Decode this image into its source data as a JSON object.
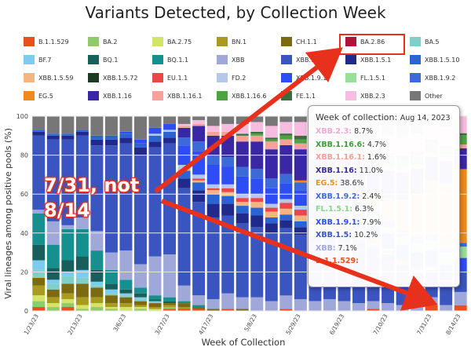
{
  "title": "Variants Detected, by Collection Week",
  "legend": [
    {
      "name": "B.1.1.529",
      "color": "#e8501e"
    },
    {
      "name": "BA.2",
      "color": "#8fcb6b"
    },
    {
      "name": "BA.2.75",
      "color": "#d4e466"
    },
    {
      "name": "BN.1",
      "color": "#a89b1f"
    },
    {
      "name": "CH.1.1",
      "color": "#7b6a12"
    },
    {
      "name": "BA.2.86",
      "color": "#b0133a"
    },
    {
      "name": "BA.5",
      "color": "#7fd0c8"
    },
    {
      "name": "BF.7",
      "color": "#7ecbf0"
    },
    {
      "name": "BQ.1",
      "color": "#175e5c"
    },
    {
      "name": "BQ.1.1",
      "color": "#16908f"
    },
    {
      "name": "XBB",
      "color": "#9fa8d8"
    },
    {
      "name": "XBB.1.5",
      "color": "#3a55c0"
    },
    {
      "name": "XBB.1.5.1",
      "color": "#1f2a8c"
    },
    {
      "name": "XBB.1.5.10",
      "color": "#2b63d3"
    },
    {
      "name": "XBB.1.5.59",
      "color": "#f5b580"
    },
    {
      "name": "XBB.1.5.72",
      "color": "#1d3a25"
    },
    {
      "name": "EU.1.1",
      "color": "#e94848"
    },
    {
      "name": "FD.2",
      "color": "#b4c8ea"
    },
    {
      "name": "XBB.1.9.1",
      "color": "#2e4df4"
    },
    {
      "name": "FL.1.5.1",
      "color": "#98e09a"
    },
    {
      "name": "XBB.1.9.2",
      "color": "#3c6ad8"
    },
    {
      "name": "EG.5",
      "color": "#f08a1e"
    },
    {
      "name": "XBB.1.16",
      "color": "#3a27a6"
    },
    {
      "name": "XBB.1.16.1",
      "color": "#f4a29a"
    },
    {
      "name": "XBB.1.16.6",
      "color": "#4ea242"
    },
    {
      "name": "FE.1.1",
      "color": "#3c6d3c"
    },
    {
      "name": "XBB.2.3",
      "color": "#f6bde0"
    },
    {
      "name": "Other",
      "color": "#777777"
    }
  ],
  "tooltip": {
    "heading": "Week of collection:",
    "date": "Aug 14, 2023",
    "rows": [
      {
        "name": "XBB.2.3:",
        "value": "8.7%",
        "color": "#f3a6d8"
      },
      {
        "name": "XBB.1.16.6:",
        "value": "4.7%",
        "color": "#3f9c35"
      },
      {
        "name": "XBB.1.16.1:",
        "value": "1.6%",
        "color": "#f29d95"
      },
      {
        "name": "XBB.1.16:",
        "value": "11.0%",
        "color": "#3a27a6"
      },
      {
        "name": "EG.5:",
        "value": "38.6%",
        "color": "#f0901e"
      },
      {
        "name": "XBB.1.9.2:",
        "value": "2.4%",
        "color": "#3c6ad8"
      },
      {
        "name": "FL.1.5.1:",
        "value": "6.3%",
        "color": "#8ad38b"
      },
      {
        "name": "XBB.1.9.1:",
        "value": "7.9%",
        "color": "#2e4df4"
      },
      {
        "name": "XBB.1.5:",
        "value": "10.2%",
        "color": "#3a55c0"
      },
      {
        "name": "XBB:",
        "value": "7.1%",
        "color": "#9fa8d8"
      },
      {
        "name": "B.1.1.529:",
        "value": "",
        "color": "#e8501e"
      }
    ]
  },
  "annotation": {
    "line1": "7/31, not",
    "line2": "8/14"
  },
  "chart_data": {
    "type": "bar",
    "stacked": true,
    "title": "Variants Detected, by Collection Week",
    "xlabel": "Week of Collection",
    "ylabel": "Viral lineages among positive pools (%)",
    "ylim": [
      0,
      100
    ],
    "yticks": [
      0,
      20,
      40,
      60,
      80,
      100
    ],
    "xtick_labels": [
      "1/23/23",
      "2/13/23",
      "3/6/23",
      "3/27/23",
      "4/17/23",
      "5/8/23",
      "5/29/23",
      "6/19/23",
      "7/10/23",
      "7/31/23",
      "8/14/23"
    ],
    "categories": [
      "1/23/23",
      "1/30/23",
      "2/6/23",
      "2/13/23",
      "2/20/23",
      "2/27/23",
      "3/6/23",
      "3/13/23",
      "3/20/23",
      "3/27/23",
      "4/3/23",
      "4/10/23",
      "4/17/23",
      "4/24/23",
      "5/1/23",
      "5/8/23",
      "5/15/23",
      "5/22/23",
      "5/29/23",
      "6/5/23",
      "6/12/23",
      "6/19/23",
      "6/26/23",
      "7/3/23",
      "7/10/23",
      "7/17/23",
      "7/24/23",
      "7/31/23",
      "8/7/23",
      "8/14/23"
    ],
    "series": [
      {
        "name": "B.1.1.529",
        "values": [
          2,
          0,
          2,
          0,
          0,
          0,
          0,
          0,
          0,
          1,
          1,
          1,
          0,
          1,
          0,
          0,
          0,
          1,
          0,
          0,
          0,
          0,
          0,
          1,
          0,
          0,
          0,
          3,
          0,
          3
        ]
      },
      {
        "name": "BA.2",
        "values": [
          3,
          2,
          2,
          1,
          2,
          1,
          0,
          1,
          0,
          1,
          0,
          0,
          0,
          0,
          0,
          0,
          0,
          0,
          0,
          0,
          0,
          0,
          0,
          0,
          0,
          0,
          0,
          0,
          0,
          0
        ]
      },
      {
        "name": "BA.2.75",
        "values": [
          3,
          2,
          2,
          2,
          2,
          1,
          2,
          1,
          1,
          0,
          0,
          0,
          0,
          0,
          0,
          0,
          0,
          0,
          0,
          0,
          0,
          0,
          0,
          0,
          0,
          0,
          0,
          0,
          0,
          0
        ]
      },
      {
        "name": "BN.1",
        "values": [
          5,
          3,
          3,
          4,
          3,
          2,
          2,
          1,
          1,
          1,
          1,
          0,
          0,
          0,
          0,
          0,
          0,
          0,
          0,
          0,
          0,
          0,
          0,
          0,
          0,
          0,
          0,
          0,
          0,
          0
        ]
      },
      {
        "name": "CH.1.1",
        "values": [
          4,
          4,
          5,
          7,
          5,
          4,
          3,
          2,
          2,
          1,
          2,
          1,
          1,
          0,
          1,
          0,
          0,
          0,
          0,
          0,
          0,
          0,
          0,
          0,
          0,
          0,
          0,
          0,
          0,
          0
        ]
      },
      {
        "name": "BA.5",
        "values": [
          4,
          3,
          4,
          3,
          1,
          1,
          1,
          1,
          0,
          0,
          0,
          0,
          0,
          0,
          0,
          0,
          0,
          0,
          0,
          0,
          0,
          0,
          0,
          0,
          0,
          0,
          0,
          0,
          0,
          0
        ]
      },
      {
        "name": "BF.7",
        "values": [
          5,
          2,
          2,
          4,
          2,
          2,
          1,
          1,
          1,
          0,
          0,
          0,
          0,
          0,
          0,
          0,
          0,
          0,
          0,
          0,
          0,
          0,
          0,
          0,
          0,
          0,
          0,
          0,
          0,
          0
        ]
      },
      {
        "name": "BQ.1",
        "values": [
          8,
          6,
          6,
          7,
          6,
          3,
          2,
          2,
          1,
          1,
          0,
          0,
          0,
          0,
          0,
          0,
          0,
          0,
          0,
          0,
          0,
          0,
          0,
          0,
          0,
          0,
          0,
          0,
          0,
          0
        ]
      },
      {
        "name": "BQ.1.1",
        "values": [
          16,
          12,
          16,
          14,
          10,
          7,
          5,
          3,
          2,
          2,
          1,
          1,
          0,
          0,
          0,
          0,
          0,
          0,
          0,
          0,
          0,
          0,
          0,
          0,
          0,
          0,
          0,
          0,
          0,
          0
        ]
      },
      {
        "name": "XBB",
        "values": [
          2,
          12,
          2,
          6,
          10,
          9,
          15,
          12,
          20,
          22,
          8,
          5,
          5,
          8,
          6,
          7,
          5,
          7,
          6,
          5,
          6,
          5,
          4,
          4,
          4,
          3,
          3,
          4,
          3,
          7
        ]
      },
      {
        "name": "XBB.1.5",
        "values": [
          38,
          42,
          44,
          42,
          44,
          55,
          55,
          56,
          56,
          57,
          50,
          48,
          42,
          40,
          38,
          36,
          35,
          35,
          33,
          30,
          30,
          30,
          28,
          25,
          22,
          18,
          15,
          12,
          10,
          10
        ]
      },
      {
        "name": "XBB.1.5.1",
        "values": [
          2,
          2,
          2,
          2,
          3,
          3,
          3,
          4,
          3,
          3,
          5,
          6,
          7,
          6,
          5,
          6,
          5,
          4,
          4,
          3,
          3,
          3,
          3,
          2,
          2,
          2,
          1,
          1,
          1,
          0
        ]
      },
      {
        "name": "XBB.1.5.10",
        "values": [
          1,
          1,
          1,
          1,
          2,
          2,
          2,
          2,
          3,
          3,
          4,
          4,
          5,
          4,
          4,
          4,
          3,
          3,
          3,
          3,
          2,
          2,
          2,
          2,
          1,
          1,
          1,
          1,
          1,
          0
        ]
      },
      {
        "name": "XBB.1.5.59",
        "values": [
          0,
          0,
          0,
          0,
          0,
          0,
          0,
          0,
          0,
          0,
          1,
          1,
          2,
          2,
          2,
          3,
          3,
          3,
          3,
          2,
          2,
          2,
          2,
          1,
          1,
          1,
          1,
          1,
          1,
          0
        ]
      },
      {
        "name": "EU.1.1",
        "values": [
          0,
          0,
          0,
          0,
          0,
          0,
          0,
          0,
          0,
          0,
          0,
          1,
          1,
          2,
          2,
          2,
          2,
          3,
          3,
          3,
          2,
          2,
          2,
          2,
          1,
          1,
          1,
          1,
          0,
          0
        ]
      },
      {
        "name": "FD.2",
        "values": [
          0,
          0,
          0,
          0,
          0,
          0,
          0,
          0,
          1,
          1,
          2,
          2,
          2,
          2,
          2,
          2,
          2,
          2,
          2,
          1,
          1,
          1,
          1,
          1,
          1,
          0,
          0,
          0,
          0,
          0
        ]
      },
      {
        "name": "XBB.1.9.1",
        "values": [
          0,
          0,
          0,
          0,
          0,
          0,
          1,
          2,
          3,
          3,
          10,
          12,
          10,
          9,
          9,
          8,
          8,
          8,
          8,
          8,
          8,
          8,
          8,
          8,
          8,
          8,
          8,
          8,
          8,
          8
        ]
      },
      {
        "name": "FL.1.5.1",
        "values": [
          0,
          0,
          0,
          0,
          0,
          0,
          0,
          0,
          0,
          0,
          0,
          0,
          0,
          0,
          0,
          0,
          0,
          0,
          0,
          1,
          1,
          2,
          2,
          3,
          3,
          4,
          5,
          5,
          6,
          6
        ]
      },
      {
        "name": "XBB.1.9.2",
        "values": [
          0,
          0,
          0,
          0,
          0,
          0,
          0,
          0,
          0,
          0,
          4,
          5,
          5,
          5,
          5,
          5,
          5,
          5,
          4,
          4,
          4,
          4,
          4,
          3,
          3,
          3,
          3,
          3,
          2,
          2
        ]
      },
      {
        "name": "EG.5",
        "values": [
          0,
          0,
          0,
          0,
          0,
          0,
          0,
          0,
          0,
          0,
          0,
          0,
          0,
          0,
          0,
          0,
          0,
          0,
          1,
          1,
          2,
          3,
          5,
          8,
          12,
          16,
          22,
          28,
          33,
          39
        ]
      },
      {
        "name": "XBB.1.16",
        "values": [
          0,
          0,
          0,
          0,
          0,
          0,
          0,
          0,
          0,
          0,
          5,
          8,
          10,
          11,
          13,
          14,
          15,
          15,
          16,
          16,
          16,
          15,
          15,
          15,
          14,
          14,
          13,
          12,
          12,
          11
        ]
      },
      {
        "name": "XBB.1.16.1",
        "values": [
          0,
          0,
          0,
          0,
          0,
          0,
          0,
          0,
          0,
          0,
          1,
          1,
          2,
          2,
          3,
          3,
          4,
          3,
          3,
          3,
          3,
          2,
          2,
          2,
          2,
          2,
          2,
          2,
          2,
          2
        ]
      },
      {
        "name": "XBB.1.16.6",
        "values": [
          0,
          0,
          0,
          0,
          0,
          0,
          0,
          0,
          0,
          0,
          0,
          0,
          0,
          0,
          0,
          1,
          1,
          2,
          2,
          3,
          3,
          3,
          4,
          4,
          5,
          5,
          5,
          5,
          5,
          5
        ]
      },
      {
        "name": "FE.1.1",
        "values": [
          0,
          0,
          0,
          0,
          0,
          0,
          0,
          0,
          0,
          0,
          0,
          0,
          0,
          0,
          1,
          1,
          1,
          1,
          2,
          2,
          2,
          2,
          2,
          2,
          2,
          2,
          2,
          2,
          1,
          1
        ]
      },
      {
        "name": "XBB.2.3",
        "values": [
          0,
          0,
          0,
          0,
          0,
          0,
          0,
          0,
          0,
          0,
          1,
          2,
          3,
          4,
          5,
          5,
          6,
          6,
          7,
          8,
          8,
          9,
          9,
          9,
          9,
          9,
          9,
          9,
          9,
          9
        ]
      },
      {
        "name": "Other",
        "values": [
          7,
          9,
          9,
          7,
          10,
          10,
          8,
          12,
          6,
          4,
          4,
          2,
          5,
          4,
          4,
          3,
          5,
          3,
          3,
          6,
          7,
          7,
          7,
          8,
          10,
          11,
          9,
          3,
          6,
          -3
        ]
      }
    ]
  }
}
